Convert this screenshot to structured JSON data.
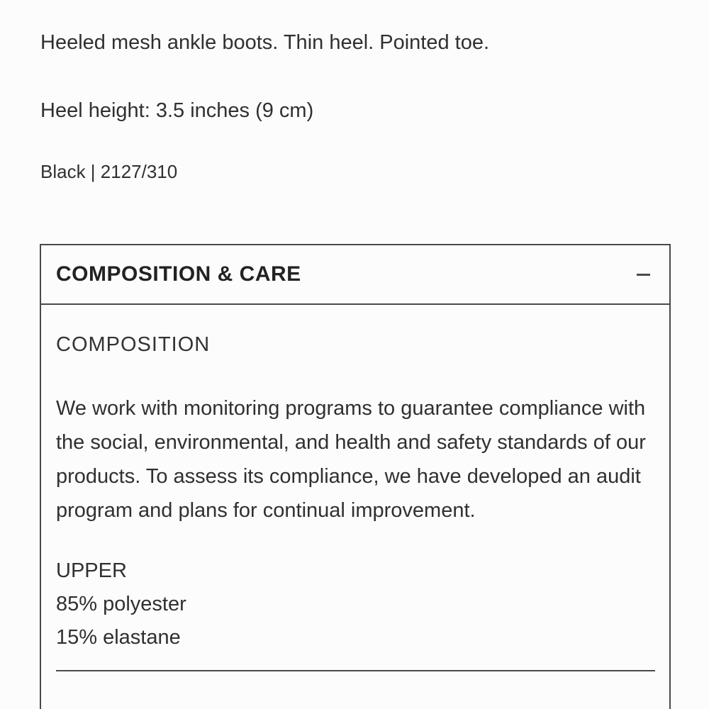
{
  "product": {
    "description": "Heeled mesh ankle boots. Thin heel. Pointed toe.",
    "heel_height": "Heel height: 3.5 inches (9 cm)",
    "color_code": "Black | 2127/310"
  },
  "accordion": {
    "title": "COMPOSITION & CARE",
    "state": "expanded",
    "collapse_icon": "minus",
    "composition": {
      "heading": "COMPOSITION",
      "paragraph": "We work with monitoring programs to guarantee compliance with the social, environmental, and health and safety standards of our products. To assess its compliance, we have developed an audit program and plans for continual improvement.",
      "parts": [
        {
          "name": "UPPER",
          "materials": [
            "85% polyester",
            "15% elastane"
          ]
        }
      ]
    }
  },
  "colors": {
    "background": "#fcfcfc",
    "text": "#303030",
    "border": "#4a4a4a"
  }
}
